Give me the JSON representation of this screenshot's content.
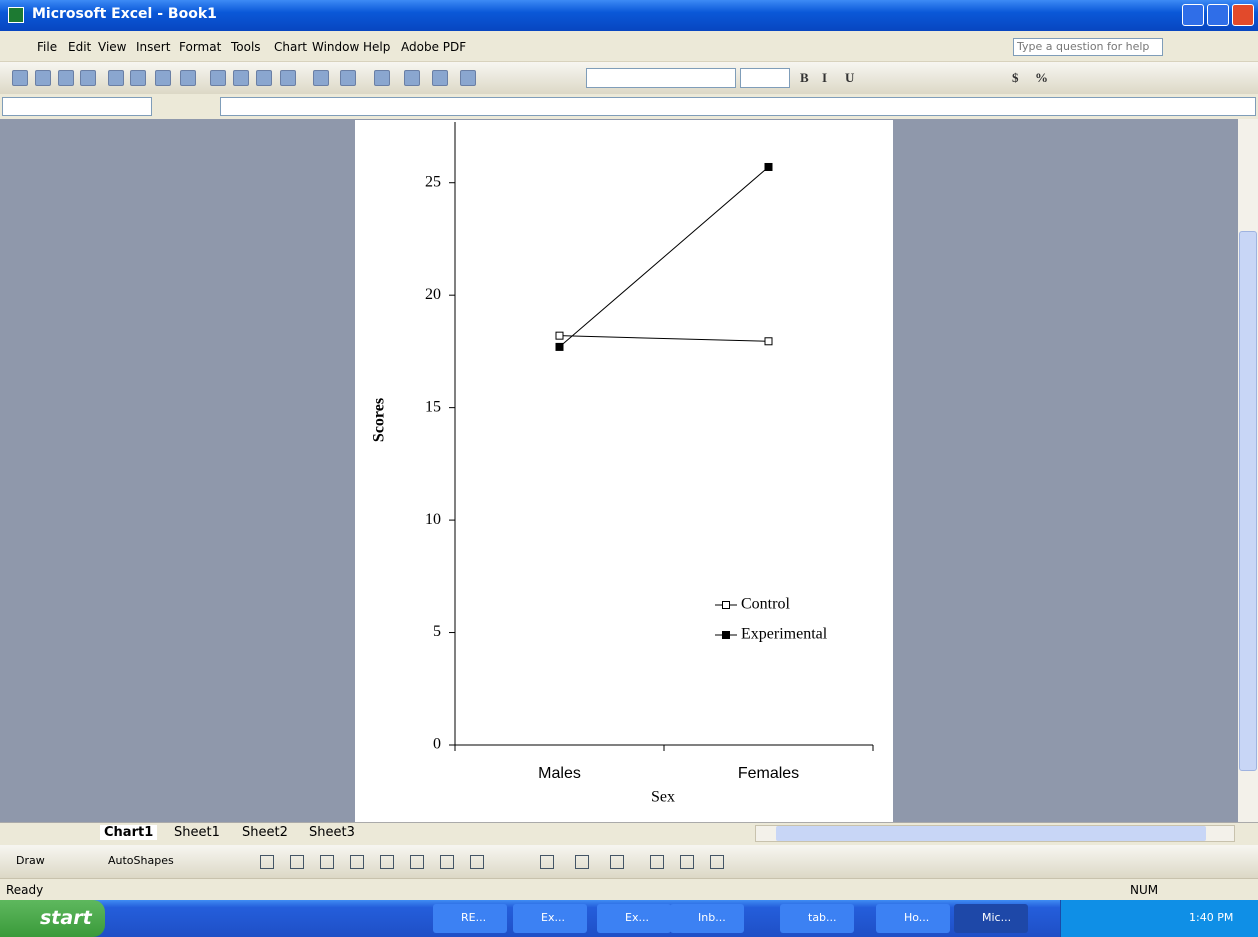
{
  "window": {
    "title": "Microsoft Excel - Book1"
  },
  "menu": [
    "File",
    "Edit",
    "View",
    "Insert",
    "Format",
    "Tools",
    "Chart",
    "Window",
    "Help",
    "Adobe PDF"
  ],
  "help_box": "Type a question for help",
  "format_buttons": [
    "B",
    "I",
    "U",
    "$",
    "%"
  ],
  "sheet_tabs": [
    "Chart1",
    "Sheet1",
    "Sheet2",
    "Sheet3"
  ],
  "draw_toolbar": [
    "Draw",
    "AutoShapes"
  ],
  "status": {
    "left": "Ready",
    "num": "NUM"
  },
  "taskbar": {
    "start": "start",
    "buttons": [
      "RE...",
      "Ex...",
      "Ex...",
      "Inb...",
      "tab...",
      "Ho...",
      "Mic..."
    ],
    "clock": "1:40 PM"
  },
  "chart_data": {
    "type": "line",
    "x_label": "Sex",
    "y_label": "Scores",
    "categories": [
      "Males",
      "Females"
    ],
    "series": [
      {
        "name": "Control",
        "color": "#000000",
        "marker_fill": "#ffffff",
        "values": [
          18.2,
          17.95
        ]
      },
      {
        "name": "Experimental",
        "color": "#000000",
        "marker_fill": "#000000",
        "values": [
          17.7,
          25.7
        ]
      }
    ],
    "ylim": [
      0,
      27.7
    ],
    "yticks": [
      0,
      5,
      10,
      15,
      20,
      25
    ],
    "grid": false,
    "legend": "lower right"
  }
}
